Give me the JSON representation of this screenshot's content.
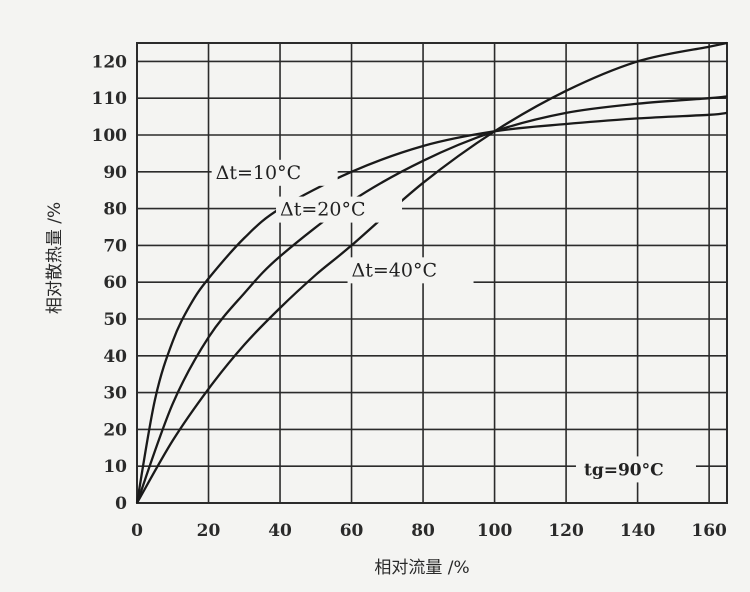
{
  "chart_data": {
    "type": "line",
    "xlabel": "相对流量 /%",
    "ylabel": "相对散热量 /%",
    "xlim": [
      0,
      165
    ],
    "ylim": [
      0,
      125
    ],
    "x_ticks": [
      0,
      20,
      40,
      60,
      80,
      100,
      120,
      140,
      160
    ],
    "y_ticks": [
      0,
      10,
      20,
      30,
      40,
      50,
      60,
      70,
      80,
      90,
      100,
      110,
      120
    ],
    "grid": true,
    "series": [
      {
        "name": "Δt=10°C",
        "x": [
          0,
          5,
          10,
          15,
          20,
          30,
          40,
          60,
          80,
          100,
          120,
          140,
          160,
          165
        ],
        "y": [
          0,
          28,
          44,
          54,
          61,
          72,
          80,
          90,
          97,
          101,
          103,
          104.5,
          105.5,
          106
        ]
      },
      {
        "name": "Δt=20°C",
        "x": [
          0,
          10,
          20,
          30,
          40,
          60,
          80,
          100,
          120,
          140,
          160,
          165
        ],
        "y": [
          0,
          27,
          45,
          57,
          67,
          82,
          93,
          101,
          106,
          108.5,
          110,
          110.5
        ]
      },
      {
        "name": "Δt=40°C",
        "x": [
          0,
          10,
          20,
          30,
          40,
          50,
          60,
          80,
          100,
          120,
          140,
          160,
          165
        ],
        "y": [
          0,
          17,
          31,
          43,
          53,
          62,
          70,
          87,
          101,
          112,
          120,
          124,
          125
        ]
      }
    ],
    "curve_labels": [
      "Δt=10°C",
      "Δt=20°C",
      "Δt=40°C"
    ],
    "annotation": "tg=90°C"
  }
}
